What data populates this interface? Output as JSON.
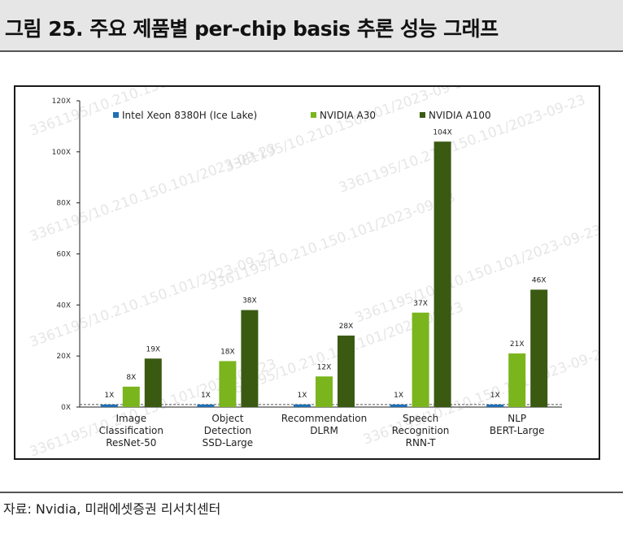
{
  "header": {
    "title": "그림 25. 주요 제품별 per-chip basis 추론 성능 그래프"
  },
  "source": "자료: Nvidia, 미래에셋증권 리서치센터",
  "watermark": [
    "3361195/10.210.150.101/2023-09-23"
  ],
  "chart_data": {
    "type": "bar",
    "categories": [
      [
        "Image",
        "Classification",
        "ResNet-50"
      ],
      [
        "Object",
        "Detection",
        "SSD-Large"
      ],
      [
        "Recommendation",
        "DLRM"
      ],
      [
        "Speech",
        "Recognition",
        "RNN-T"
      ],
      [
        "NLP",
        "BERT-Large"
      ]
    ],
    "series": [
      {
        "name": "Intel Xeon 8380H (Ice Lake)",
        "color": "#1f6fb4",
        "values": [
          1,
          1,
          1,
          1,
          1
        ],
        "labels": [
          "1X",
          "1X",
          "1X",
          "1X",
          "1X"
        ]
      },
      {
        "name": "NVIDIA A30",
        "color": "#7ab51d",
        "values": [
          8,
          18,
          12,
          37,
          21
        ],
        "labels": [
          "8X",
          "18X",
          "12X",
          "37X",
          "21X"
        ]
      },
      {
        "name": "NVIDIA A100",
        "color": "#3a5a12",
        "values": [
          19,
          38,
          28,
          104,
          46
        ],
        "labels": [
          "19X",
          "38X",
          "28X",
          "104X",
          "46X"
        ]
      }
    ],
    "ylim": [
      0,
      120
    ],
    "yticks": [
      0,
      20,
      40,
      60,
      80,
      100,
      120
    ],
    "ytick_labels": [
      "0X",
      "20X",
      "40X",
      "60X",
      "80X",
      "100X",
      "120X"
    ],
    "baseline": 1,
    "legend_position": "top-left",
    "grid": false
  }
}
